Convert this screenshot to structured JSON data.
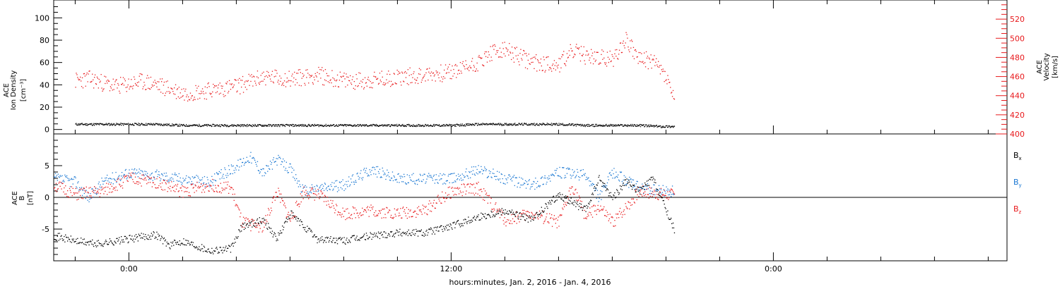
{
  "chart_data": [
    {
      "type": "scatter",
      "panel": "top",
      "ylabel_left_line1": "ACE",
      "ylabel_left_line2": "Ion Density",
      "ylabel_left_units": "[cm⁻³]",
      "ylabel_right_line1": "ACE",
      "ylabel_right_line2": "Velocity",
      "ylabel_right_units": "[km/s]",
      "left_axis": {
        "ylim": [
          -4,
          116
        ],
        "ticks": [
          0,
          20,
          40,
          60,
          80,
          100
        ],
        "color": "#000000"
      },
      "right_axis": {
        "ylim": [
          400,
          540
        ],
        "ticks": [
          400,
          420,
          440,
          460,
          480,
          500,
          520
        ],
        "color": "#e8191c"
      },
      "series": [
        {
          "color": "#000000",
          "axis": "left",
          "x_hours": [
            -2,
            -1,
            0,
            1,
            2,
            3,
            4,
            5,
            6,
            7,
            8,
            9,
            10,
            11,
            12,
            13,
            14,
            15,
            16,
            17,
            18,
            19,
            19.8,
            20.3
          ],
          "values": [
            5,
            5,
            5,
            5,
            4,
            4,
            4,
            4,
            4,
            4,
            4,
            4,
            4,
            4,
            4,
            5,
            5,
            5,
            5,
            4,
            4,
            4,
            3,
            3
          ]
        },
        {
          "color": "#e8191c",
          "axis": "right",
          "x_hours": [
            -2,
            -1.5,
            -0.5,
            0.5,
            1,
            2,
            3,
            4,
            5,
            6,
            7,
            8,
            9,
            10,
            11,
            12,
            13,
            13.5,
            14,
            15,
            16,
            16.5,
            17,
            18,
            18.5,
            19,
            19.5,
            20,
            20.3
          ],
          "values": [
            456,
            458,
            450,
            455,
            452,
            443,
            446,
            450,
            460,
            458,
            462,
            456,
            456,
            460,
            462,
            465,
            475,
            485,
            488,
            475,
            473,
            487,
            482,
            478,
            500,
            478,
            477,
            460,
            435
          ]
        }
      ]
    },
    {
      "type": "scatter",
      "panel": "bottom",
      "ylabel_line1": "ACE",
      "ylabel_line2": "B",
      "ylabel_units": "[nT]",
      "ylim": [
        -10,
        10
      ],
      "ticks": [
        -5,
        0,
        5
      ],
      "xlim_hours": [
        -2.8,
        32.7
      ],
      "xtick_hours": [
        0,
        12,
        24
      ],
      "xtick_labels": [
        "0:00",
        "12:00",
        "0:00"
      ],
      "xlabel": "hours:minutes, Jan.  2, 2016 - Jan.  4, 2016",
      "series": [
        {
          "name": "Bx",
          "color": "#000000",
          "x_hours": [
            -2.8,
            -2,
            -1.2,
            0,
            1,
            1.5,
            2,
            3,
            3.8,
            4.2,
            5,
            5.5,
            6,
            7,
            8,
            9,
            10,
            11,
            12,
            13,
            14,
            15,
            16,
            17,
            17.5,
            18,
            18.5,
            19,
            19.5,
            20.3
          ],
          "values": [
            -6,
            -6.8,
            -7.3,
            -6.5,
            -5.8,
            -7.5,
            -6.8,
            -8.3,
            -8.0,
            -4.5,
            -3.5,
            -6.5,
            -2.5,
            -6.5,
            -6.8,
            -6.0,
            -5.5,
            -5.5,
            -4.5,
            -3.0,
            -2.0,
            -3.5,
            0.5,
            -2.0,
            3.0,
            0.0,
            2.5,
            1.0,
            3.0,
            -5.0
          ]
        },
        {
          "name": "By",
          "color": "#1a77d2",
          "x_hours": [
            -2.8,
            -2,
            -1.5,
            -1,
            0,
            1,
            2,
            3,
            4,
            4.5,
            5,
            5.5,
            6,
            6.5,
            7,
            8,
            9,
            10,
            11,
            12,
            13,
            14,
            15,
            16,
            17,
            17.5,
            18,
            19,
            20,
            20.3
          ],
          "values": [
            3,
            2.5,
            0,
            2.5,
            4,
            3.5,
            3,
            2.5,
            5,
            6.5,
            4,
            6,
            4.5,
            1,
            1.5,
            2,
            4.5,
            3,
            3,
            3,
            4.5,
            3,
            2,
            4,
            3.5,
            0,
            4,
            1.5,
            1,
            1
          ]
        },
        {
          "name": "Bz",
          "color": "#e8191c",
          "x_hours": [
            -2.8,
            -2,
            -1,
            0,
            1,
            2,
            3,
            3.8,
            4.2,
            5,
            5.5,
            6,
            6.5,
            7,
            8,
            9,
            10,
            11,
            12,
            13,
            14,
            15,
            16,
            16.5,
            17,
            17.5,
            18,
            19,
            20,
            20.3
          ],
          "values": [
            2,
            0.5,
            1,
            3,
            2.5,
            1,
            2,
            1.5,
            -4,
            -4.5,
            1,
            -3.5,
            1,
            0.5,
            -2.5,
            -2,
            -2.5,
            -2,
            1,
            1.5,
            -3.5,
            -2.5,
            -4,
            2,
            -3,
            -1.5,
            -4,
            1,
            0.5,
            0.5
          ]
        }
      ],
      "legend": [
        {
          "label": "B",
          "sub": "x",
          "color": "#000000"
        },
        {
          "label": "B",
          "sub": "y",
          "color": "#1a77d2"
        },
        {
          "label": "B",
          "sub": "z",
          "color": "#e8191c"
        }
      ]
    }
  ]
}
